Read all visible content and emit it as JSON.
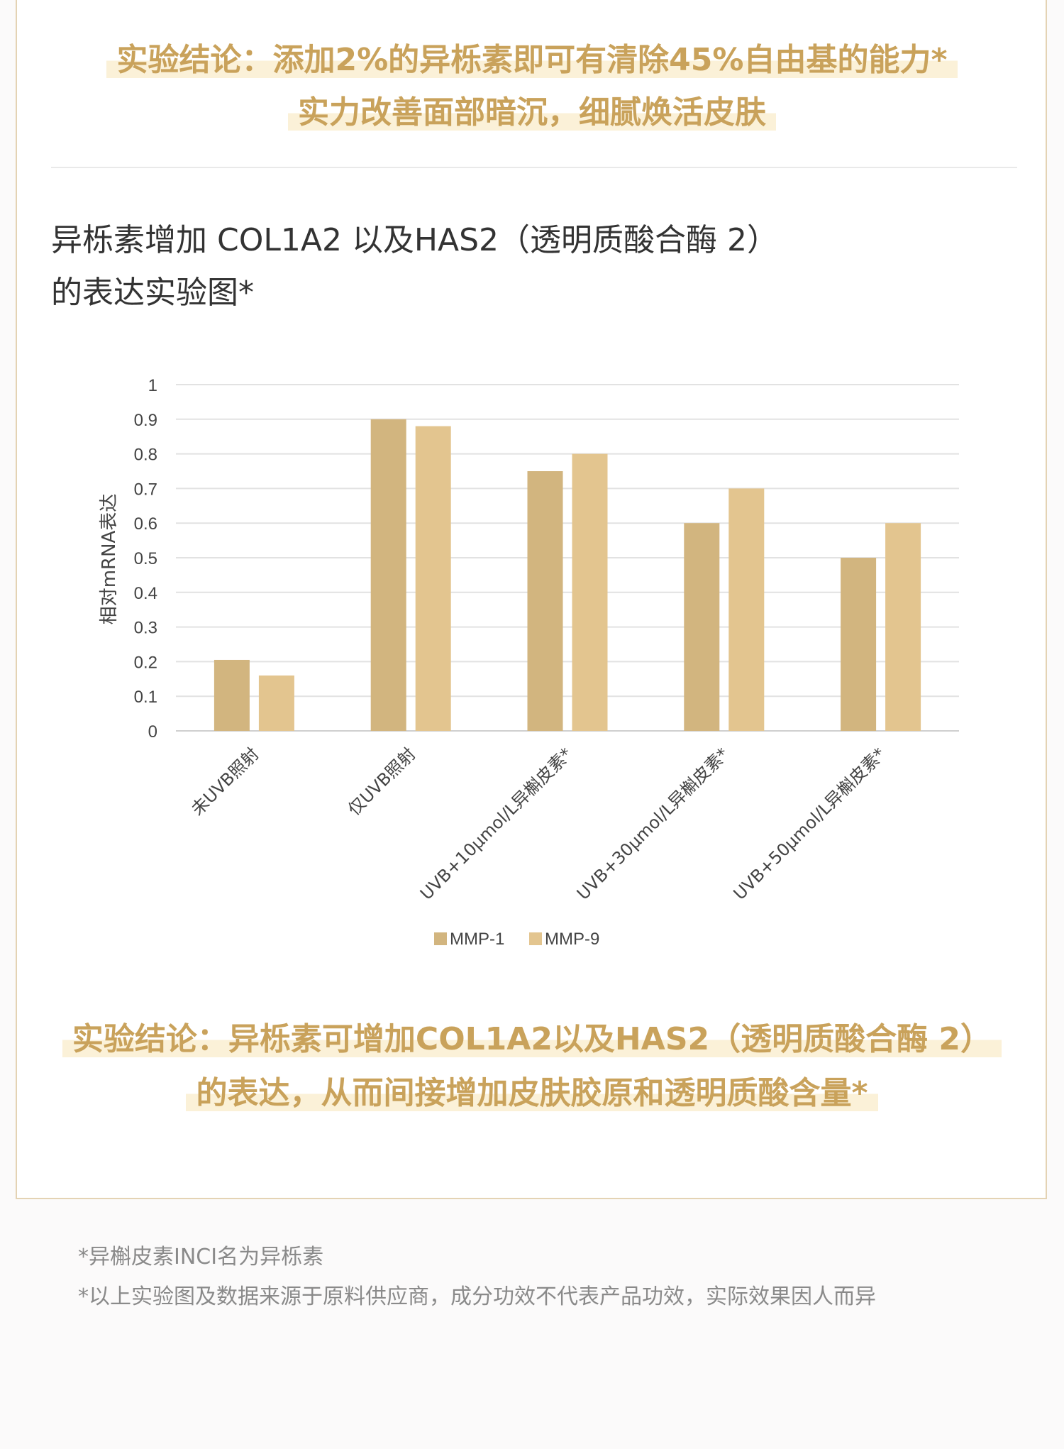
{
  "headline_top": {
    "line1": "实验结论：添加2%的异栎素即可有清除45%自由基的能力*",
    "line2": "实力改善面部暗沉，细腻焕活皮肤"
  },
  "chart_title": {
    "line1": "异栎素增加 COL1A2 以及HAS2（透明质酸合酶 2）",
    "line2": "的表达实验图*"
  },
  "chart_data": {
    "type": "bar",
    "ylabel": "相对mRNA表达",
    "ylim": [
      0,
      1
    ],
    "yticks": [
      "0",
      "0.1",
      "0.2",
      "0.3",
      "0.4",
      "0.5",
      "0.6",
      "0.7",
      "0.8",
      "0.9",
      "1"
    ],
    "categories": [
      "未UVB照射",
      "仅UVB照射",
      "UVB+10μmol/L异槲皮素*",
      "UVB+30μmol/L异槲皮素*",
      "UVB+50μmol/L异槲皮素*"
    ],
    "series": [
      {
        "name": "MMP-1",
        "color": "#d2b57f",
        "values": [
          0.205,
          0.9,
          0.75,
          0.6,
          0.5
        ]
      },
      {
        "name": "MMP-9",
        "color": "#e3c58f",
        "values": [
          0.16,
          0.88,
          0.8,
          0.7,
          0.6
        ]
      }
    ],
    "grid": true,
    "legend_position": "bottom"
  },
  "headline_bottom": {
    "line1": "实验结论：异栎素可增加COL1A2以及HAS2（透明质酸合酶 2）",
    "line2": "的表达，从而间接增加皮肤胶原和透明质酸含量*"
  },
  "footnotes": [
    "*异槲皮素INCI名为异栎素",
    "*以上实验图及数据来源于原料供应商，成分功效不代表产品功效，实际效果因人而异"
  ]
}
